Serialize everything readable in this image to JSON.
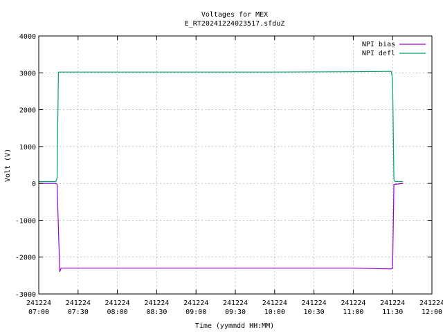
{
  "chart_data": {
    "type": "line",
    "title": "Voltages for MEX",
    "subtitle": "E_RT20241224023517.sfduZ",
    "xlabel": "Time (yymmdd HH:MM)",
    "ylabel": "Volt (V)",
    "ylim": [
      -3000,
      4000
    ],
    "xlim": [
      "2024-12-24 07:00",
      "2024-12-24 12:00"
    ],
    "y_ticks": [
      "4000",
      "3000",
      "2000",
      "1000",
      "0",
      "-1000",
      "-2000",
      "-3000"
    ],
    "x_ticks": [
      {
        "date": "241224",
        "time": "07:00"
      },
      {
        "date": "241224",
        "time": "07:30"
      },
      {
        "date": "241224",
        "time": "08:00"
      },
      {
        "date": "241224",
        "time": "08:30"
      },
      {
        "date": "241224",
        "time": "09:00"
      },
      {
        "date": "241224",
        "time": "09:30"
      },
      {
        "date": "241224",
        "time": "10:00"
      },
      {
        "date": "241224",
        "time": "10:30"
      },
      {
        "date": "241224",
        "time": "11:00"
      },
      {
        "date": "241224",
        "time": "11:30"
      },
      {
        "date": "241224",
        "time": "12:00"
      }
    ],
    "grid": true,
    "legend_position": "top-right",
    "series": [
      {
        "name": "NPI bias",
        "color": "#9400d3",
        "points": [
          [
            "2024-12-24 07:00",
            0
          ],
          [
            "2024-12-24 07:13",
            0
          ],
          [
            "2024-12-24 07:14",
            -30
          ],
          [
            "2024-12-24 07:16",
            -2400
          ],
          [
            "2024-12-24 07:17",
            -2300
          ],
          [
            "2024-12-24 08:00",
            -2300
          ],
          [
            "2024-12-24 09:00",
            -2300
          ],
          [
            "2024-12-24 10:00",
            -2300
          ],
          [
            "2024-12-24 11:00",
            -2300
          ],
          [
            "2024-12-24 11:29",
            -2320
          ],
          [
            "2024-12-24 11:30",
            -2300
          ],
          [
            "2024-12-24 11:31",
            -30
          ],
          [
            "2024-12-24 11:38",
            0
          ]
        ]
      },
      {
        "name": "NPI defl",
        "color": "#009e73",
        "points": [
          [
            "2024-12-24 07:00",
            50
          ],
          [
            "2024-12-24 07:13",
            50
          ],
          [
            "2024-12-24 07:14",
            150
          ],
          [
            "2024-12-24 07:15",
            3020
          ],
          [
            "2024-12-24 08:00",
            3020
          ],
          [
            "2024-12-24 09:00",
            3020
          ],
          [
            "2024-12-24 10:00",
            3020
          ],
          [
            "2024-12-24 11:00",
            3030
          ],
          [
            "2024-12-24 11:28",
            3040
          ],
          [
            "2024-12-24 11:29",
            3040
          ],
          [
            "2024-12-24 11:30",
            2800
          ],
          [
            "2024-12-24 11:31",
            100
          ],
          [
            "2024-12-24 11:32",
            50
          ],
          [
            "2024-12-24 11:38",
            50
          ]
        ]
      }
    ]
  }
}
